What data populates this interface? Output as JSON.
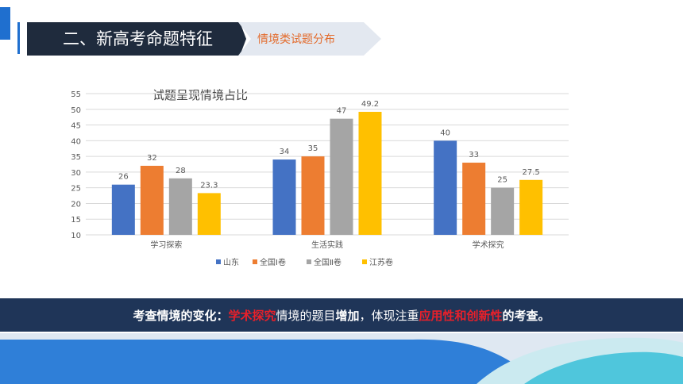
{
  "header": {
    "title": "二、新高考命题特征",
    "subtitle": "情境类试题分布"
  },
  "chart_data": {
    "type": "bar",
    "title": "试题呈现情境占比",
    "categories": [
      "学习探索",
      "生活实践",
      "学术探究"
    ],
    "series": [
      {
        "name": "山东",
        "color": "#4472c4",
        "values": [
          26,
          34,
          40
        ]
      },
      {
        "name": "全国Ⅰ卷",
        "color": "#ed7d31",
        "values": [
          32,
          35,
          33
        ]
      },
      {
        "name": "全国Ⅱ卷",
        "color": "#a5a5a5",
        "values": [
          28,
          47,
          25
        ]
      },
      {
        "name": "江苏卷",
        "color": "#ffc000",
        "values": [
          23.3,
          49.2,
          27.5
        ]
      }
    ],
    "ylim": [
      10,
      55
    ],
    "yticks": [
      10,
      15,
      20,
      25,
      30,
      35,
      40,
      45,
      50,
      55
    ],
    "grid": true,
    "legend": "bottom",
    "data_labels": true
  },
  "banner": {
    "p1": "考查情境的变化：",
    "p2": "学术探究",
    "p3": "情境的题目",
    "p4": "增加",
    "p5": "，体现注重",
    "p6": "应用性和创新性",
    "p7": "的考查。"
  },
  "colors": {
    "title_bg": "#1f2b3d",
    "accent": "#1f6fcf",
    "banner_bg": "#1f3558",
    "highlight": "#e8202a"
  }
}
